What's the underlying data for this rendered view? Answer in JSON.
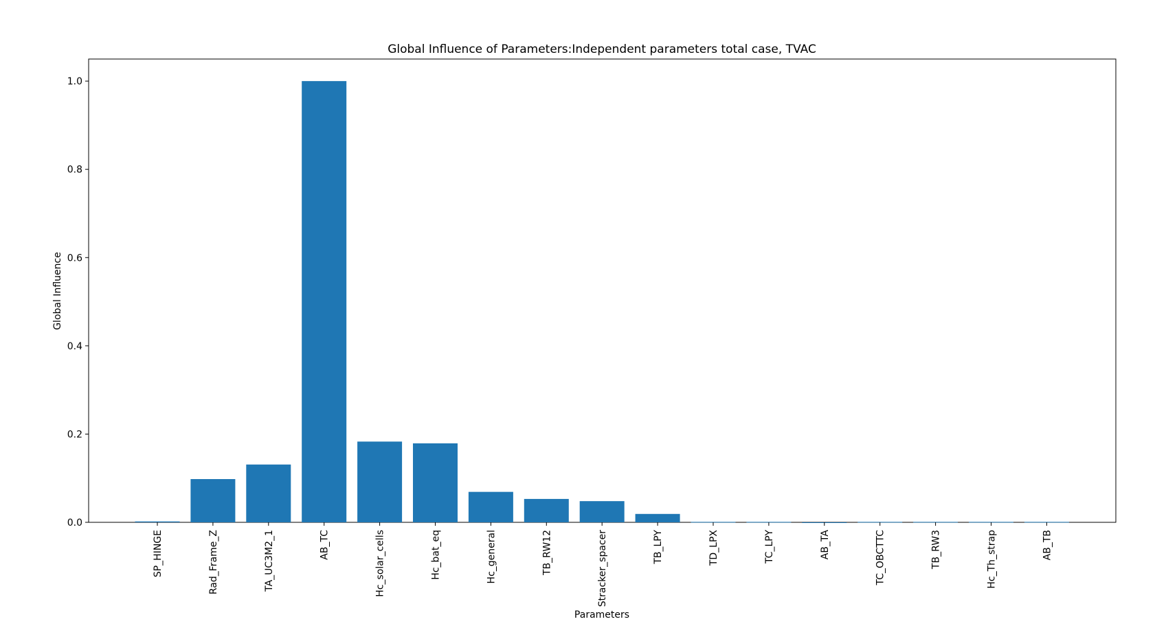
{
  "chart_data": {
    "type": "bar",
    "title": "Global Influence of Parameters:Independent parameters total case, TVAC",
    "xlabel": "Parameters",
    "ylabel": "Global Influence",
    "categories": [
      "SP_HINGE",
      "Rad_Frame_Z",
      "TA_UC3M2_1",
      "AB_TC",
      "Hc_solar_cells",
      "Hc_bat_eq",
      "Hc_general",
      "TB_RW12",
      "Stracker_spacer",
      "TB_LPY",
      "TD_LPX",
      "TC_LPY",
      "AB_TA",
      "TC_OBCTTC",
      "TB_RW3",
      "Hc_Th_strap",
      "AB_TB"
    ],
    "values": [
      0.002,
      0.098,
      0.131,
      1.0,
      0.183,
      0.179,
      0.069,
      0.053,
      0.048,
      0.019,
      0.001,
      0.001,
      0.0,
      0.001,
      0.001,
      0.001,
      0.001
    ],
    "ylim": [
      0,
      1.05
    ],
    "yticks": [
      "0.0",
      "0.2",
      "0.4",
      "0.6",
      "0.8",
      "1.0"
    ],
    "bar_color": "#1f77b4",
    "grid": false,
    "legend": "none"
  }
}
